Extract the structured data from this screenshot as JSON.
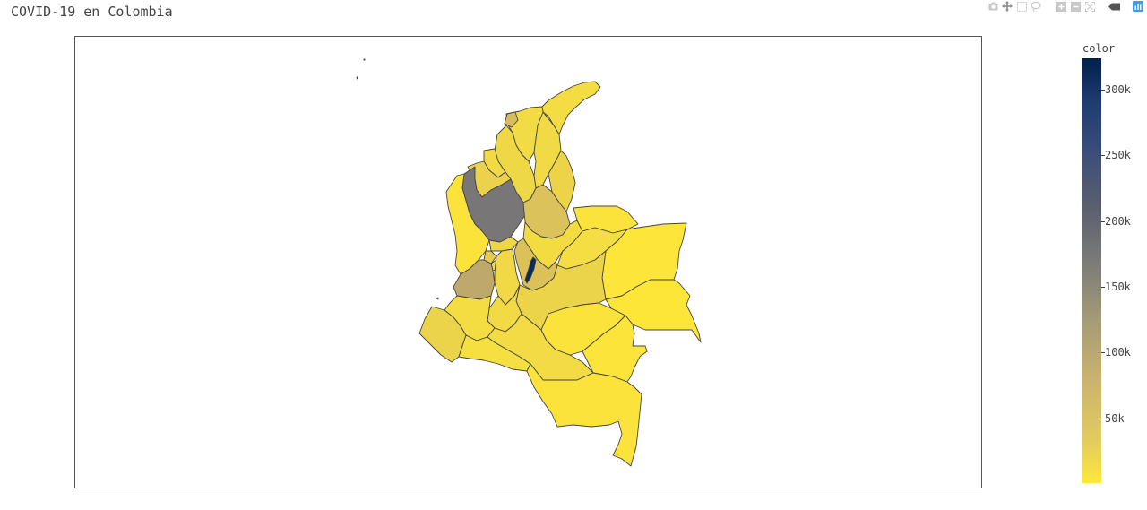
{
  "title": "COVID-19 en Colombia",
  "modebar": [
    "camera-icon",
    "pan-icon",
    "box-select-icon",
    "lasso-select-icon",
    "zoom-in-icon",
    "zoom-out-icon",
    "autoscale-icon",
    "reset-axes-icon",
    "toggle-spike-icon",
    "plotly-logo-icon"
  ],
  "colorbar": {
    "title": "color",
    "ticks": [
      "300k",
      "250k",
      "200k",
      "150k",
      "100k",
      "50k"
    ],
    "colors": {
      "low": "#fee839",
      "mid": "#7b7b78",
      "high": "#00204c"
    }
  },
  "border_color": "#444444"
}
